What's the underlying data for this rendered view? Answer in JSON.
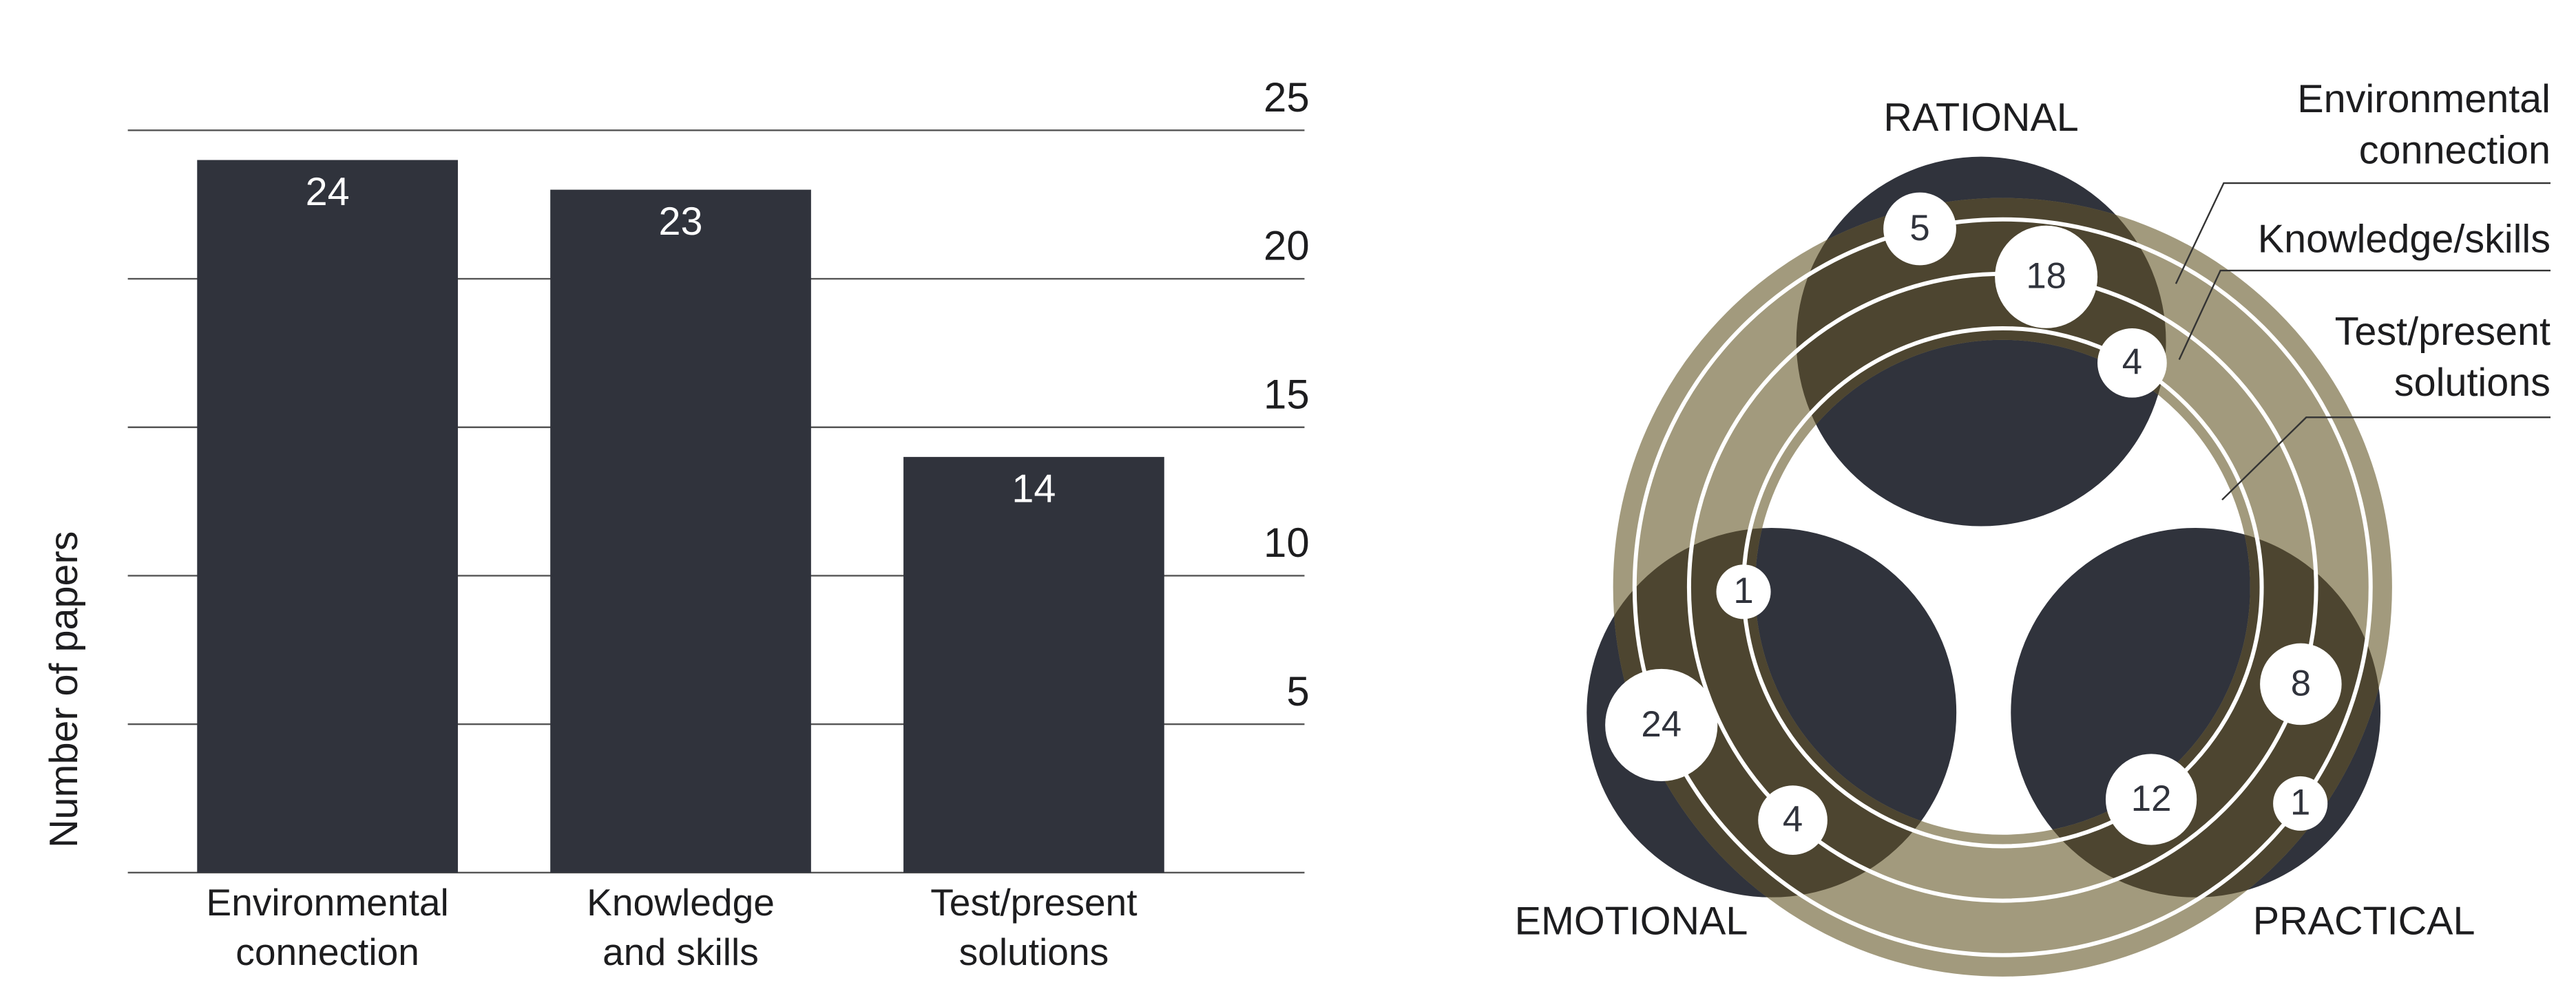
{
  "chart_data": [
    {
      "type": "bar",
      "ylabel": "Number of papers",
      "categories": [
        "Environmental\nconnection",
        "Knowledge\nand skills",
        "Test/present\nsolutions"
      ],
      "values": [
        24,
        23,
        14
      ],
      "color": "#30333c",
      "label_color": "#ffffff",
      "ylim": [
        0,
        25
      ],
      "yticks": [
        5,
        10,
        15,
        20,
        25
      ],
      "grid": true
    },
    {
      "type": "ring-venn",
      "sets": [
        "RATIONAL",
        "EMOTIONAL",
        "PRACTICAL"
      ],
      "set_color": "#30333c",
      "ring_color": "#a29a7d",
      "overlap_color": "#4d4530",
      "series": [
        {
          "name": "Environmental\nconnection",
          "values": [
            5,
            24,
            1
          ]
        },
        {
          "name": "Knowledge/skills",
          "values": [
            18,
            4,
            8
          ]
        },
        {
          "name": "Test/present\nsolutions",
          "values": [
            4,
            1,
            12
          ]
        }
      ]
    }
  ]
}
